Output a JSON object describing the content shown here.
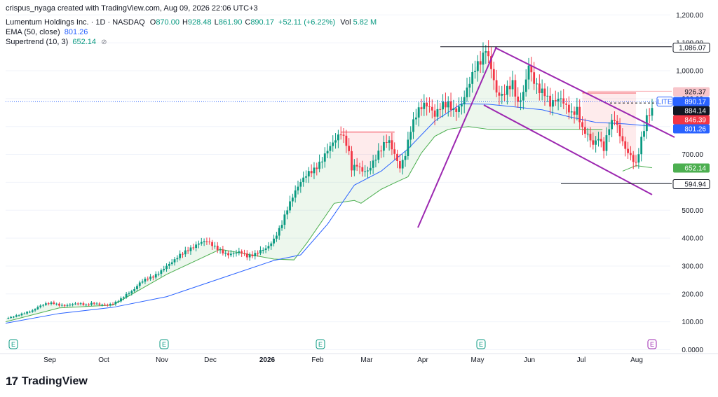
{
  "header": {
    "attribution": "crispus_nyaga created with TradingView.com, Aug 09, 2026 22:06 UTC+3",
    "symbol": "Lumentum Holdings Inc. · 1D · NASDAQ",
    "ohlc": [
      {
        "key": "O",
        "value": "870.00"
      },
      {
        "key": "H",
        "value": "928.48"
      },
      {
        "key": "L",
        "value": "861.90"
      },
      {
        "key": "C",
        "value": "890.17"
      }
    ],
    "change": "+52.11 (+6.22%)",
    "vol_label": "Vol",
    "vol_value": "5.82 M",
    "ema_label": "EMA (50, close)",
    "ema_value": "801.26",
    "supertrend_label": "Supertrend (10, 3)",
    "supertrend_value": "652.14",
    "eye_icon": "eye-off-icon"
  },
  "colors": {
    "up": "#089981",
    "down": "#f23645",
    "ema": "#2962ff",
    "supertrend_up": "#4caf50",
    "supertrend_down": "#f23645",
    "trendline": "#9c27b0",
    "price_line": "#2962ff"
  },
  "footer": {
    "logo_mark": "17",
    "logo_text": "TradingView"
  },
  "chart_data": {
    "type": "candlestick",
    "symbol_ticker": "LITE",
    "y_axis": {
      "ticks": [
        "1,200.00",
        "1,100.00",
        "1,000.00",
        "900.00",
        "800.00",
        "700.00",
        "600.00",
        "500.00",
        "400.00",
        "300.00",
        "200.00",
        "100.00",
        "0.0000"
      ],
      "range": [
        0,
        1200
      ]
    },
    "x_axis": {
      "labels": [
        "Sep",
        "Oct",
        "Nov",
        "Dec",
        "2026",
        "Feb",
        "Mar",
        "Apr",
        "May",
        "Jun",
        "Jul",
        "Aug"
      ]
    },
    "price_tags": [
      {
        "value": 1086.07,
        "label": "1,086.07",
        "style": "black-outline"
      },
      {
        "value": 926.37,
        "label": "926.37",
        "style": "pink"
      },
      {
        "value": 890.17,
        "label": "890.17",
        "style": "blue",
        "ticker": "LITE"
      },
      {
        "value": 884.14,
        "label": "884.14",
        "style": "black"
      },
      {
        "value": 846.39,
        "label": "846.39",
        "style": "red"
      },
      {
        "value": 801.26,
        "label": "801.26",
        "style": "blue"
      },
      {
        "value": 652.14,
        "label": "652.14",
        "style": "green"
      },
      {
        "value": 594.94,
        "label": "594.94",
        "style": "black-outline"
      }
    ],
    "earnings_markers": [
      "E",
      "E",
      "E",
      "E",
      "E"
    ],
    "price_path": [
      [
        0,
        112
      ],
      [
        5,
        118
      ],
      [
        10,
        125
      ],
      [
        15,
        133
      ],
      [
        20,
        140
      ],
      [
        25,
        156
      ],
      [
        30,
        165
      ],
      [
        35,
        168
      ],
      [
        40,
        160
      ],
      [
        45,
        158
      ],
      [
        50,
        164
      ],
      [
        55,
        166
      ],
      [
        60,
        160
      ],
      [
        65,
        168
      ],
      [
        70,
        162
      ],
      [
        75,
        160
      ],
      [
        80,
        165
      ],
      [
        85,
        178
      ],
      [
        90,
        198
      ],
      [
        95,
        212
      ],
      [
        100,
        240
      ],
      [
        105,
        255
      ],
      [
        110,
        262
      ],
      [
        115,
        278
      ],
      [
        120,
        300
      ],
      [
        125,
        318
      ],
      [
        130,
        340
      ],
      [
        135,
        355
      ],
      [
        140,
        368
      ],
      [
        145,
        385
      ],
      [
        150,
        390
      ],
      [
        155,
        372
      ],
      [
        160,
        355
      ],
      [
        165,
        340
      ],
      [
        170,
        345
      ],
      [
        175,
        352
      ],
      [
        180,
        335
      ],
      [
        185,
        340
      ],
      [
        190,
        355
      ],
      [
        195,
        365
      ],
      [
        200,
        395
      ],
      [
        205,
        440
      ],
      [
        210,
        505
      ],
      [
        215,
        560
      ],
      [
        220,
        602
      ],
      [
        225,
        632
      ],
      [
        230,
        645
      ],
      [
        235,
        672
      ],
      [
        240,
        716
      ],
      [
        245,
        748
      ],
      [
        250,
        778
      ],
      [
        255,
        730
      ],
      [
        258,
        650
      ],
      [
        262,
        662
      ],
      [
        266,
        640
      ],
      [
        270,
        640
      ],
      [
        275,
        680
      ],
      [
        280,
        722
      ],
      [
        285,
        756
      ],
      [
        290,
        700
      ],
      [
        294,
        652
      ],
      [
        298,
        700
      ],
      [
        302,
        790
      ],
      [
        307,
        855
      ],
      [
        312,
        880
      ],
      [
        316,
        870
      ],
      [
        320,
        840
      ],
      [
        325,
        878
      ],
      [
        330,
        880
      ],
      [
        335,
        852
      ],
      [
        340,
        880
      ],
      [
        345,
        948
      ],
      [
        350,
        1010
      ],
      [
        355,
        1040
      ],
      [
        358,
        1080
      ],
      [
        362,
        1010
      ],
      [
        366,
        920
      ],
      [
        370,
        910
      ],
      [
        374,
        935
      ],
      [
        378,
        955
      ],
      [
        382,
        880
      ],
      [
        386,
        920
      ],
      [
        390,
        1020
      ],
      [
        394,
        960
      ],
      [
        398,
        930
      ],
      [
        402,
        920
      ],
      [
        406,
        880
      ],
      [
        410,
        895
      ],
      [
        414,
        900
      ],
      [
        418,
        872
      ],
      [
        422,
        845
      ],
      [
        426,
        860
      ],
      [
        430,
        790
      ],
      [
        434,
        770
      ],
      [
        438,
        735
      ],
      [
        442,
        760
      ],
      [
        446,
        720
      ],
      [
        450,
        800
      ],
      [
        454,
        828
      ],
      [
        458,
        770
      ],
      [
        462,
        720
      ],
      [
        466,
        694
      ],
      [
        470,
        664
      ],
      [
        474,
        754
      ],
      [
        478,
        832
      ],
      [
        482,
        861
      ]
    ],
    "ema_path": [
      [
        0,
        95
      ],
      [
        40,
        130
      ],
      [
        80,
        152
      ],
      [
        120,
        190
      ],
      [
        160,
        255
      ],
      [
        200,
        320
      ],
      [
        220,
        340
      ],
      [
        240,
        450
      ],
      [
        260,
        590
      ],
      [
        280,
        640
      ],
      [
        300,
        720
      ],
      [
        320,
        820
      ],
      [
        340,
        882
      ],
      [
        360,
        880
      ],
      [
        380,
        870
      ],
      [
        400,
        860
      ],
      [
        420,
        835
      ],
      [
        440,
        815
      ],
      [
        460,
        810
      ],
      [
        482,
        801
      ]
    ],
    "supertrend_path": [
      [
        0,
        100
      ],
      [
        40,
        150
      ],
      [
        80,
        160
      ],
      [
        120,
        270
      ],
      [
        160,
        360
      ],
      [
        200,
        325
      ],
      [
        215,
        322
      ],
      [
        225,
        385
      ],
      [
        245,
        525
      ],
      [
        260,
        535
      ],
      [
        265,
        525
      ],
      [
        280,
        575
      ],
      [
        290,
        598
      ],
      [
        300,
        620
      ],
      [
        310,
        705
      ],
      [
        320,
        765
      ],
      [
        330,
        790
      ],
      [
        345,
        800
      ],
      [
        360,
        790
      ],
      [
        380,
        790
      ],
      [
        400,
        790
      ],
      [
        420,
        790
      ],
      [
        445,
        790
      ]
    ]
  }
}
